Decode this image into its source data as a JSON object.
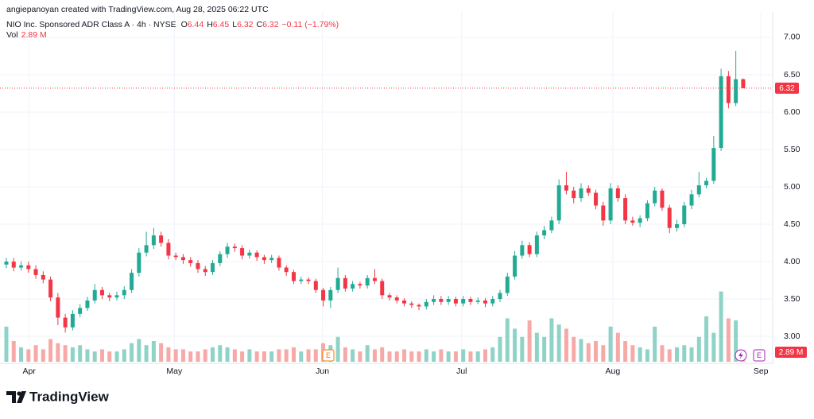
{
  "chart_data": {
    "type": "candlestick",
    "credit": "angiepanoyan created with TradingView.com, Aug 28, 2025 06:22 UTC",
    "title": "NIO Inc. Sponsored ADR Class A · 4h · NYSE",
    "ohlc_prefixes": [
      "O",
      "H",
      "L",
      "C"
    ],
    "change_label": "−0.11 (−1.79%)",
    "volume_title": "Vol",
    "last_volume_label": "2.89 M",
    "earnings_label": "E",
    "logo_text": "TradingView",
    "up_color": "#22ab94",
    "down_color": "#f23645",
    "volume_up_color": "#8fd3c8",
    "volume_down_color": "#f7a9a7",
    "grid": true,
    "ylim": [
      2.66,
      7.34
    ],
    "yticks": [
      {
        "value": 3,
        "label": "3.00"
      },
      {
        "value": 3.5,
        "label": "3.50"
      },
      {
        "value": 4,
        "label": "4.00"
      },
      {
        "value": 4.5,
        "label": "4.50"
      },
      {
        "value": 5,
        "label": "5.00"
      },
      {
        "value": 5.5,
        "label": "5.50"
      },
      {
        "value": 6,
        "label": "6.00"
      },
      {
        "value": 6.5,
        "label": "6.50"
      },
      {
        "value": 7,
        "label": "7.00"
      }
    ],
    "xlim": [
      -0.86,
      104
    ],
    "xticks": [
      {
        "value": 3.1,
        "label": "Apr"
      },
      {
        "value": 22.8,
        "label": "May"
      },
      {
        "value": 42.9,
        "label": "Jun"
      },
      {
        "value": 61.8,
        "label": "Jul"
      },
      {
        "value": 82.3,
        "label": "Aug"
      },
      {
        "value": 102.4,
        "label": "Sep"
      }
    ],
    "volume_lim": [
      0,
      20
    ],
    "open": [
      3.96,
      4.0,
      3.92,
      3.95,
      3.9,
      3.82,
      3.76,
      3.52,
      3.25,
      3.12,
      3.3,
      3.38,
      3.48,
      3.62,
      3.55,
      3.52,
      3.55,
      3.62,
      3.85,
      4.12,
      4.22,
      4.35,
      4.25,
      4.08,
      4.06,
      4.02,
      3.98,
      3.9,
      3.86,
      3.98,
      4.1,
      4.2,
      4.18,
      4.08,
      4.12,
      4.06,
      4.02,
      4.05,
      3.92,
      3.86,
      3.74,
      3.76,
      3.74,
      3.62,
      3.48,
      3.62,
      3.78,
      3.64,
      3.7,
      3.68,
      3.78,
      3.74,
      3.55,
      3.52,
      3.48,
      3.44,
      3.42,
      3.4,
      3.46,
      3.5,
      3.46,
      3.5,
      3.44,
      3.5,
      3.46,
      3.48,
      3.44,
      3.5,
      3.58,
      3.8,
      4.08,
      4.22,
      4.1,
      4.35,
      4.42,
      4.55,
      5.02,
      4.95,
      4.85,
      4.98,
      4.92,
      4.75,
      4.55,
      4.98,
      4.85,
      4.55,
      4.52,
      4.58,
      4.78,
      4.95,
      4.72,
      4.45,
      4.5,
      4.75,
      4.9,
      5.02,
      5.08,
      5.52,
      6.48,
      6.12,
      6.44
    ],
    "high": [
      4.05,
      4.05,
      4.0,
      4.0,
      3.95,
      3.87,
      3.8,
      3.58,
      3.3,
      3.35,
      3.43,
      3.53,
      3.7,
      3.66,
      3.58,
      3.6,
      3.67,
      3.9,
      4.18,
      4.4,
      4.45,
      4.4,
      4.3,
      4.12,
      4.1,
      4.06,
      4.02,
      3.94,
      4.02,
      4.14,
      4.25,
      4.24,
      4.22,
      4.16,
      4.15,
      4.09,
      4.09,
      4.08,
      3.95,
      3.89,
      3.8,
      3.79,
      3.77,
      3.65,
      3.66,
      3.92,
      3.82,
      3.74,
      3.73,
      3.82,
      3.9,
      3.77,
      3.58,
      3.55,
      3.51,
      3.47,
      3.44,
      3.5,
      3.55,
      3.54,
      3.54,
      3.53,
      3.54,
      3.53,
      3.52,
      3.51,
      3.54,
      3.62,
      3.85,
      4.14,
      4.28,
      4.26,
      4.4,
      4.48,
      4.6,
      5.1,
      5.2,
      5.0,
      5.05,
      5.02,
      4.96,
      4.8,
      5.05,
      5.02,
      4.9,
      4.6,
      4.62,
      4.82,
      5.0,
      4.98,
      4.76,
      4.56,
      4.8,
      4.96,
      5.2,
      5.12,
      5.68,
      6.58,
      6.55,
      6.82,
      6.45
    ],
    "low": [
      3.91,
      3.87,
      3.88,
      3.85,
      3.77,
      3.71,
      3.47,
      3.15,
      3.05,
      3.08,
      3.26,
      3.34,
      3.44,
      3.5,
      3.47,
      3.48,
      3.5,
      3.58,
      3.8,
      4.07,
      4.17,
      4.2,
      4.03,
      4.02,
      3.97,
      3.93,
      3.85,
      3.81,
      3.82,
      3.94,
      4.05,
      4.13,
      4.03,
      4.04,
      4.01,
      3.97,
      3.98,
      3.88,
      3.81,
      3.7,
      3.7,
      3.7,
      3.58,
      3.4,
      3.38,
      3.58,
      3.6,
      3.6,
      3.64,
      3.64,
      3.7,
      3.5,
      3.48,
      3.44,
      3.4,
      3.38,
      3.35,
      3.36,
      3.42,
      3.42,
      3.42,
      3.4,
      3.4,
      3.42,
      3.43,
      3.39,
      3.4,
      3.46,
      3.54,
      3.76,
      4.04,
      4.06,
      4.06,
      4.3,
      4.38,
      4.5,
      4.9,
      4.78,
      4.8,
      4.88,
      4.7,
      4.48,
      4.5,
      4.8,
      4.5,
      4.48,
      4.46,
      4.54,
      4.74,
      4.68,
      4.38,
      4.4,
      4.46,
      4.7,
      4.86,
      4.98,
      5.04,
      5.48,
      6.05,
      6.08,
      6.32
    ],
    "close": [
      4.0,
      3.92,
      3.95,
      3.9,
      3.82,
      3.76,
      3.52,
      3.25,
      3.12,
      3.3,
      3.38,
      3.48,
      3.62,
      3.55,
      3.52,
      3.55,
      3.62,
      3.85,
      4.12,
      4.22,
      4.35,
      4.25,
      4.08,
      4.06,
      4.02,
      3.98,
      3.9,
      3.86,
      3.98,
      4.1,
      4.2,
      4.18,
      4.08,
      4.12,
      4.06,
      4.02,
      4.05,
      3.92,
      3.86,
      3.74,
      3.76,
      3.74,
      3.62,
      3.48,
      3.62,
      3.78,
      3.64,
      3.7,
      3.68,
      3.78,
      3.74,
      3.55,
      3.52,
      3.48,
      3.44,
      3.42,
      3.4,
      3.46,
      3.5,
      3.46,
      3.5,
      3.44,
      3.5,
      3.46,
      3.48,
      3.44,
      3.5,
      3.58,
      3.8,
      4.08,
      4.22,
      4.1,
      4.35,
      4.42,
      4.55,
      5.02,
      4.95,
      4.85,
      4.98,
      4.92,
      4.75,
      4.55,
      4.98,
      4.85,
      4.55,
      4.52,
      4.58,
      4.78,
      4.95,
      4.72,
      4.45,
      4.5,
      4.75,
      4.9,
      5.02,
      5.08,
      5.52,
      6.48,
      6.12,
      6.44,
      6.32
    ],
    "volume": [
      8.5,
      5.0,
      3.5,
      3.0,
      4.0,
      3.0,
      5.5,
      4.5,
      4.0,
      3.5,
      4.0,
      3.0,
      2.5,
      3.0,
      2.5,
      2.5,
      3.0,
      4.5,
      5.5,
      4.0,
      5.0,
      4.5,
      3.5,
      3.0,
      3.0,
      2.5,
      2.5,
      3.0,
      3.5,
      4.0,
      3.5,
      3.0,
      2.5,
      3.0,
      2.5,
      2.5,
      2.5,
      3.0,
      3.0,
      3.5,
      2.5,
      3.0,
      3.0,
      4.5,
      4.0,
      6.0,
      3.5,
      3.0,
      2.5,
      4.0,
      3.0,
      3.5,
      2.5,
      2.5,
      3.0,
      2.5,
      2.5,
      3.0,
      2.5,
      3.0,
      2.5,
      2.5,
      3.0,
      2.5,
      2.5,
      3.0,
      3.5,
      6.0,
      10.5,
      8.0,
      6.0,
      10.0,
      7.0,
      6.0,
      10.5,
      9.0,
      8.0,
      6.0,
      5.5,
      4.5,
      5.0,
      4.0,
      8.5,
      7.0,
      5.0,
      4.0,
      3.5,
      3.0,
      8.5,
      4.0,
      3.0,
      3.5,
      4.0,
      3.5,
      6.0,
      11.0,
      7.0,
      17.0,
      10.5,
      10.0,
      2.89
    ]
  }
}
